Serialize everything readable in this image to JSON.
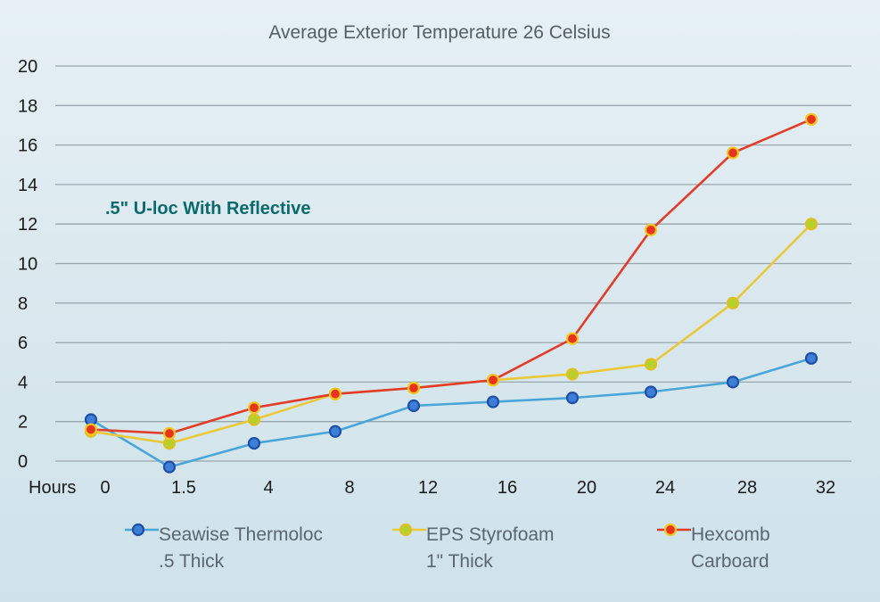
{
  "chart_data": {
    "type": "line",
    "title": "Average Exterior Temperature 26 Celsius",
    "annotation": ".5\" U-loc With Reflective",
    "x_header": "Hours",
    "categories": [
      "0",
      "1.5",
      "4",
      "8",
      "12",
      "16",
      "20",
      "24",
      "28",
      "32"
    ],
    "ylim": [
      0,
      20
    ],
    "yticks": [
      0,
      2,
      4,
      6,
      8,
      10,
      12,
      14,
      16,
      18,
      20
    ],
    "grid": true,
    "legend_position": "bottom",
    "series": [
      {
        "name": "Seawise Thermoloc .5 Thick",
        "legend_lines": [
          "Seawise Thermoloc",
          ".5 Thick"
        ],
        "line_color": "#4aa6d8",
        "marker_fill": "#3d7fd6",
        "marker_stroke": "#1f4fa8",
        "values": [
          2.1,
          -0.3,
          0.9,
          1.5,
          2.8,
          3.0,
          3.2,
          3.5,
          4.0,
          5.2
        ]
      },
      {
        "name": "EPS Styrofoam 1\" Thick",
        "legend_lines": [
          "EPS Styrofoam",
          "1\" Thick"
        ],
        "line_color": "#e9c93a",
        "marker_fill": "#b5d12e",
        "marker_stroke": "#e0c020",
        "values": [
          1.5,
          0.9,
          2.1,
          3.4,
          3.7,
          4.1,
          4.4,
          4.9,
          8.0,
          12.0
        ]
      },
      {
        "name": "Hexcomb Carboard",
        "legend_lines": [
          "Hexcomb",
          "Carboard"
        ],
        "line_color": "#e23c2a",
        "marker_fill": "#e8331f",
        "marker_stroke": "#f2c81e",
        "values": [
          1.6,
          1.4,
          2.7,
          3.4,
          3.7,
          4.1,
          6.2,
          11.7,
          15.6,
          17.3
        ]
      }
    ]
  }
}
